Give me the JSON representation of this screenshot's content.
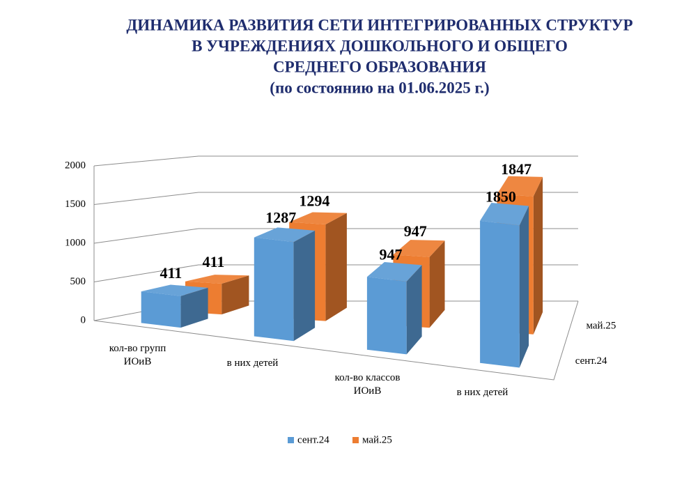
{
  "chart_data": {
    "type": "bar3d",
    "title": [
      "ДИНАМИКА РАЗВИТИЯ СЕТИ ИНТЕГРИРОВАННЫХ СТРУКТУР",
      "В УЧРЕЖДЕНИЯХ ДОШКОЛЬНОГО И ОБЩЕГО",
      "СРЕДНЕГО ОБРАЗОВАНИЯ",
      "(по состоянию на 01.06.2025 г.)"
    ],
    "categories": [
      "кол-во  групп ИОиВ",
      "в них детей",
      "кол-во классов ИОиВ",
      "в них детей"
    ],
    "series": [
      {
        "name": "сент.24",
        "color": "#5b9bd5",
        "values": [
          411,
          1287,
          947,
          1850
        ]
      },
      {
        "name": "май.25",
        "color": "#ed7d31",
        "values": [
          411,
          1294,
          947,
          1847
        ]
      }
    ],
    "ylim": [
      0,
      2000
    ],
    "yticks": [
      0,
      500,
      1000,
      1500,
      2000
    ],
    "grid": true,
    "legend": "bottom"
  }
}
